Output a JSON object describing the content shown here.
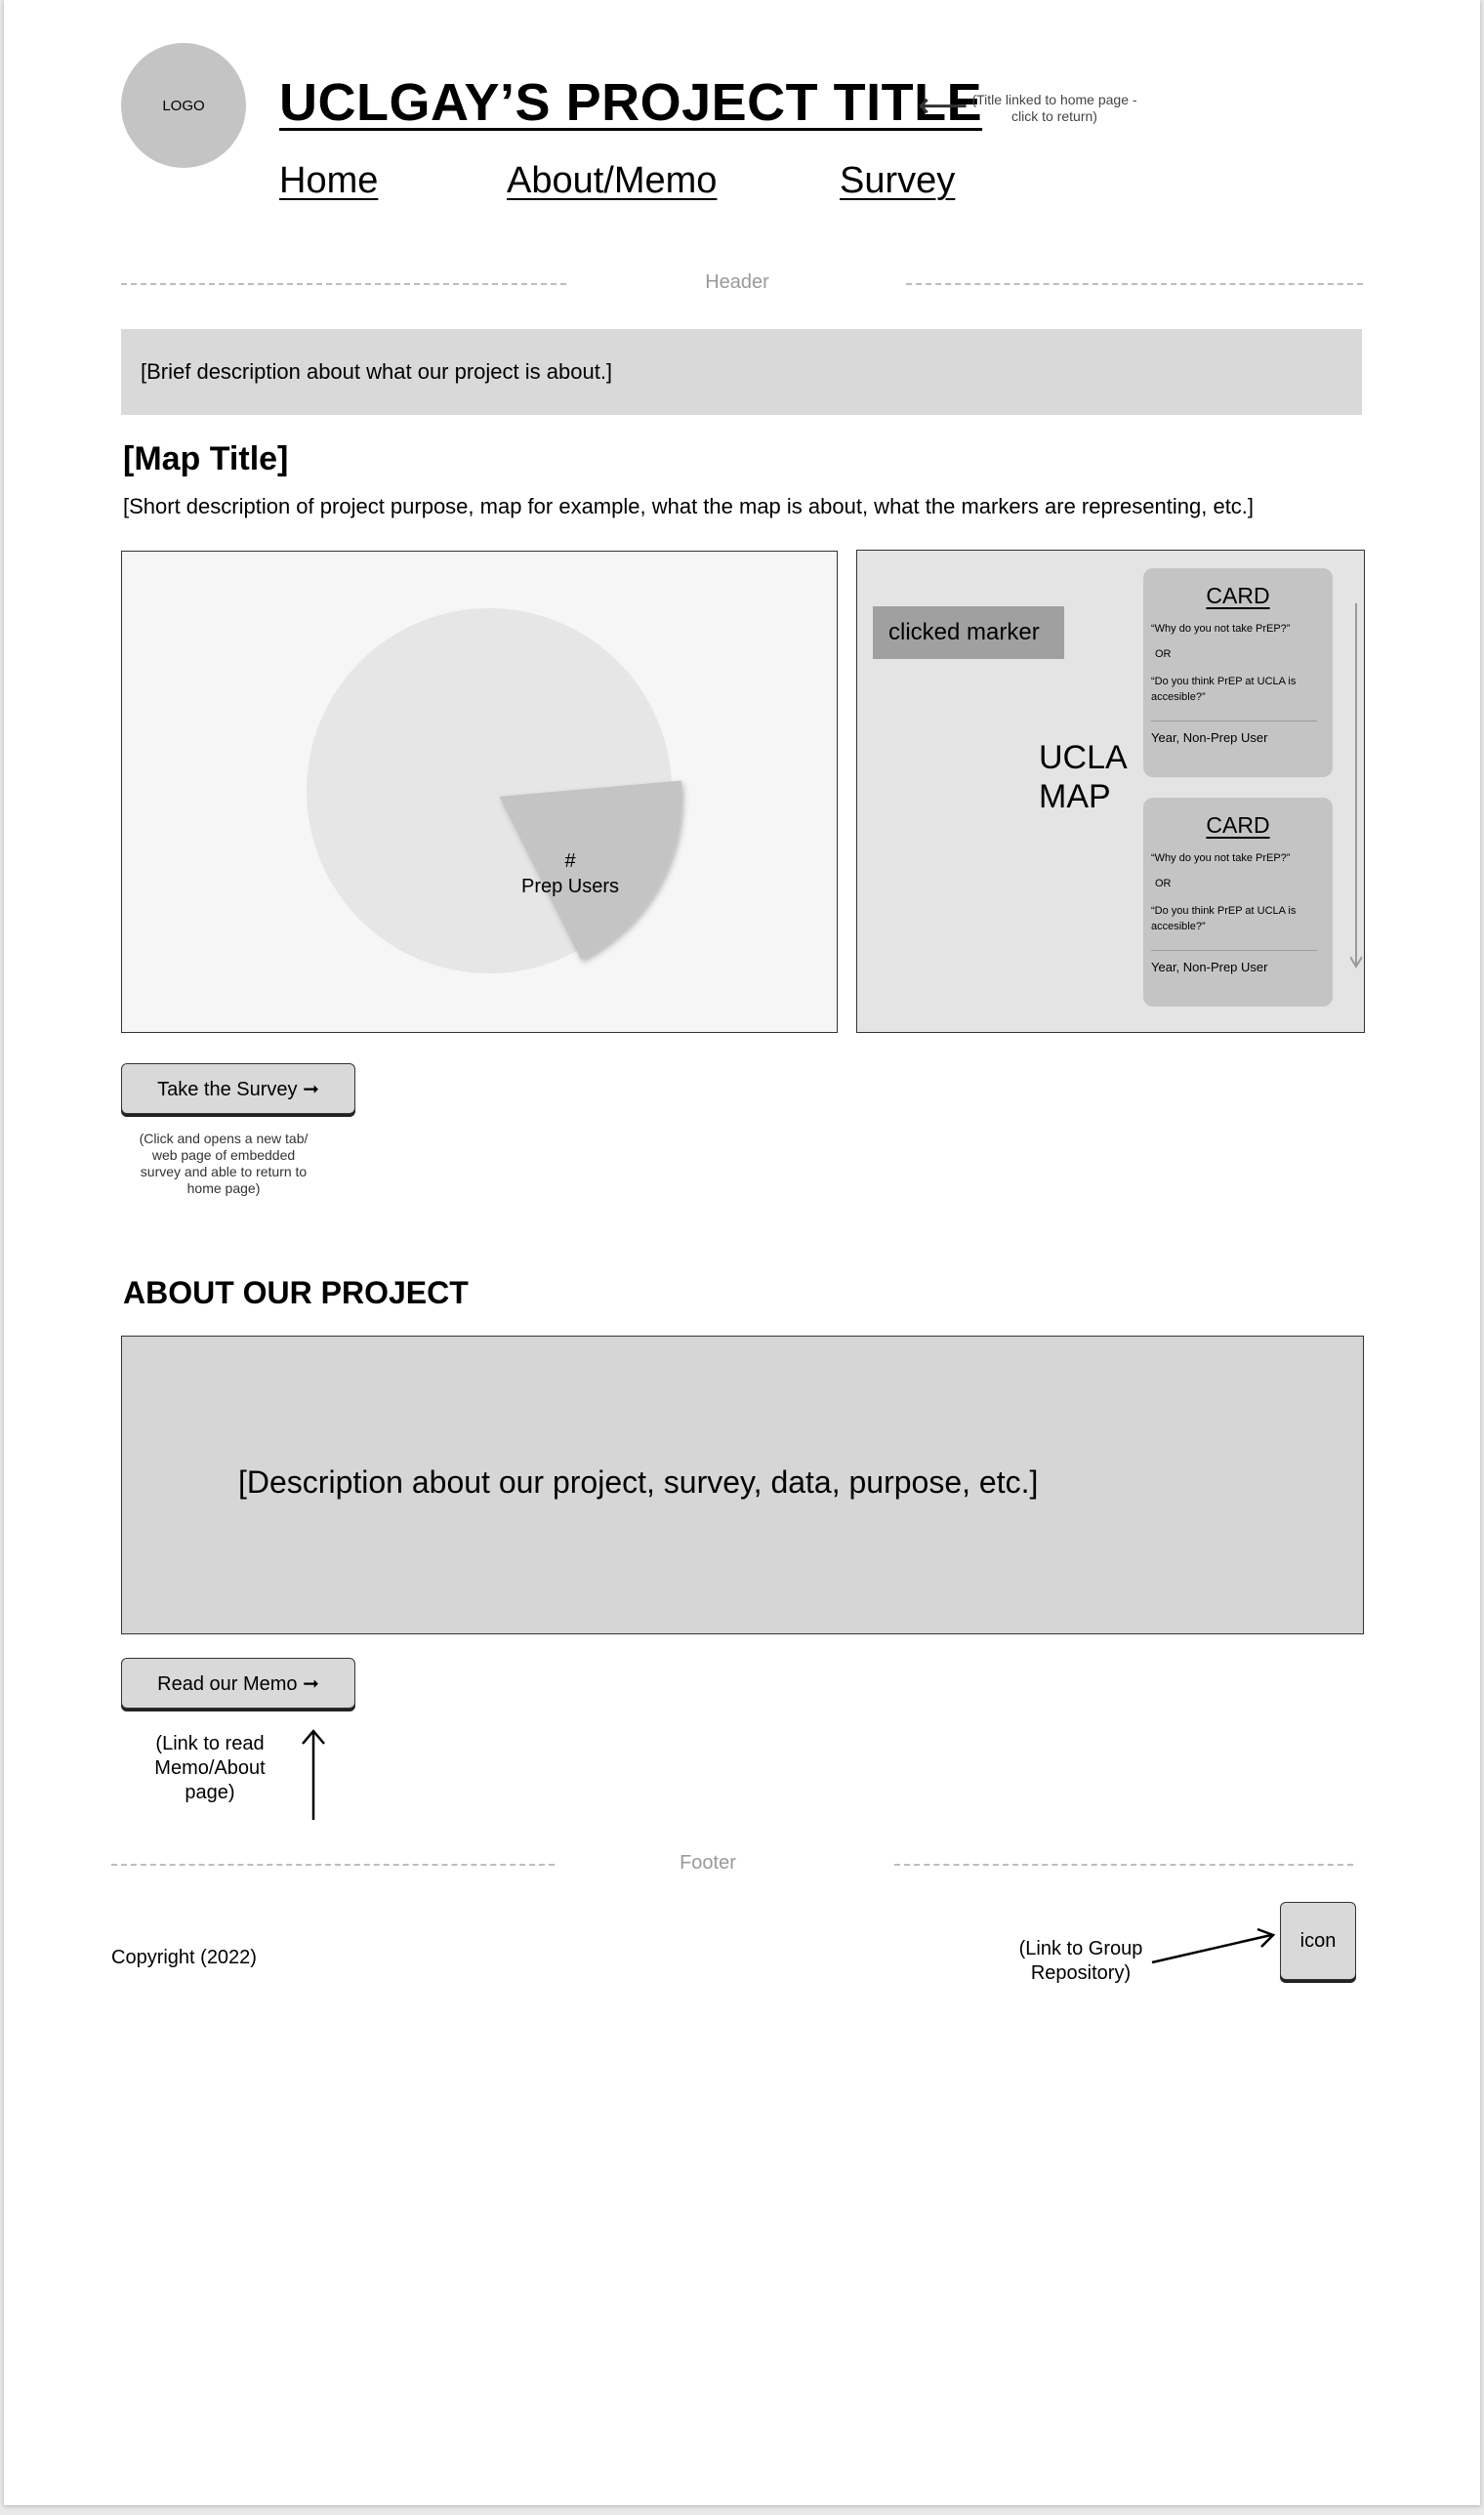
{
  "header": {
    "logo_text": "LOGO",
    "title": "UCLGAY’S PROJECT TITLE",
    "title_arrow": "⟵",
    "title_note": "(Title linked to home page - click to return)",
    "nav": [
      {
        "label": "Home"
      },
      {
        "label": "About/Memo"
      },
      {
        "label": "Survey"
      }
    ],
    "section_label": "Header"
  },
  "intro": {
    "brief": "[Brief description about what our project is about.]"
  },
  "map_section": {
    "title": "[Map Title]",
    "description": "[Short description of project purpose, map for example, what the map is about, what the markers are representing, etc.]",
    "pie": {
      "label_line1": "#",
      "label_line2": "Prep Users",
      "slice_fraction": 0.19,
      "base_color": "#e6e6e6",
      "slice_color": "#c4c4c4"
    },
    "map": {
      "marker_chip": "clicked marker",
      "map_label_line1": "UCLA",
      "map_label_line2": "MAP",
      "cards": [
        {
          "title": "CARD",
          "question1": "“Why do you not take PrEP?”",
          "or": "OR",
          "question2": "“Do you think PrEP at UCLA is accesible?”",
          "footer": "Year, Non-Prep User"
        },
        {
          "title": "CARD",
          "question1": "“Why do you not take PrEP?”",
          "or": "OR",
          "question2": "“Do you think PrEP at UCLA is accesible?”",
          "footer": "Year, Non-Prep User"
        }
      ]
    }
  },
  "survey": {
    "button_label": "Take the Survey ➞",
    "note": "(Click and opens a new tab/ web page of embedded survey and able to return to home page)"
  },
  "about": {
    "heading": "ABOUT OUR PROJECT",
    "text": "[Description about our project, survey, data, purpose, etc.]",
    "memo_button_label": "Read our Memo ➞",
    "memo_note": "(Link to read Memo/About page)"
  },
  "footer": {
    "section_label": "Footer",
    "copyright": "Copyright (2022)",
    "repo_note": "(Link to Group Repository)",
    "icon_label": "icon"
  }
}
